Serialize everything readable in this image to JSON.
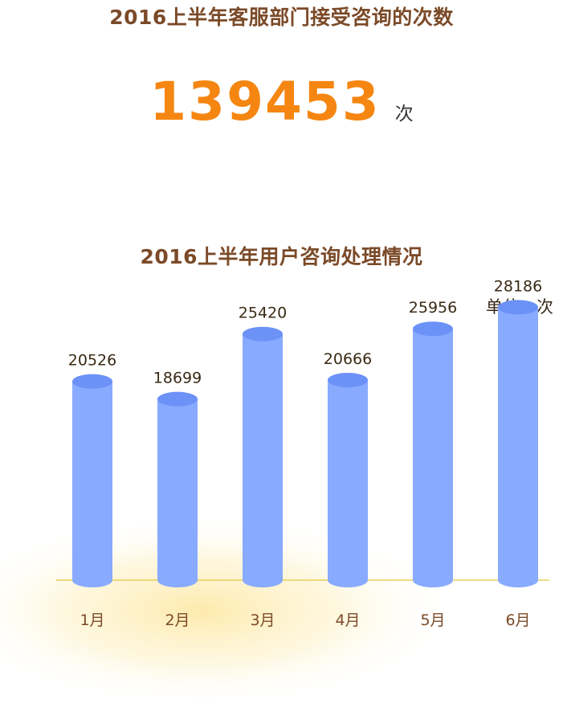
{
  "header": {
    "title": "2016上半年客服部门接受咨询的次数",
    "total_value": "139453",
    "total_unit": "次"
  },
  "chart_data": {
    "type": "bar",
    "title": "2016上半年用户咨询处理情况",
    "unit_label": "单位：次",
    "categories": [
      "1月",
      "2月",
      "3月",
      "4月",
      "5月",
      "6月"
    ],
    "values": [
      20526,
      18699,
      25420,
      20666,
      25956,
      28186
    ],
    "value_labels": [
      "20526",
      "18699",
      "25420",
      "20666",
      "25956",
      "28186"
    ],
    "legend": "none",
    "grid": false,
    "colors": {
      "bar_body": "#88aaff",
      "bar_top": "#6c91f7",
      "axis_line": "#e9cf58",
      "glow": "#fde9a8",
      "label_text": "#3a2a14",
      "tick_text": "#7b4a28"
    }
  }
}
